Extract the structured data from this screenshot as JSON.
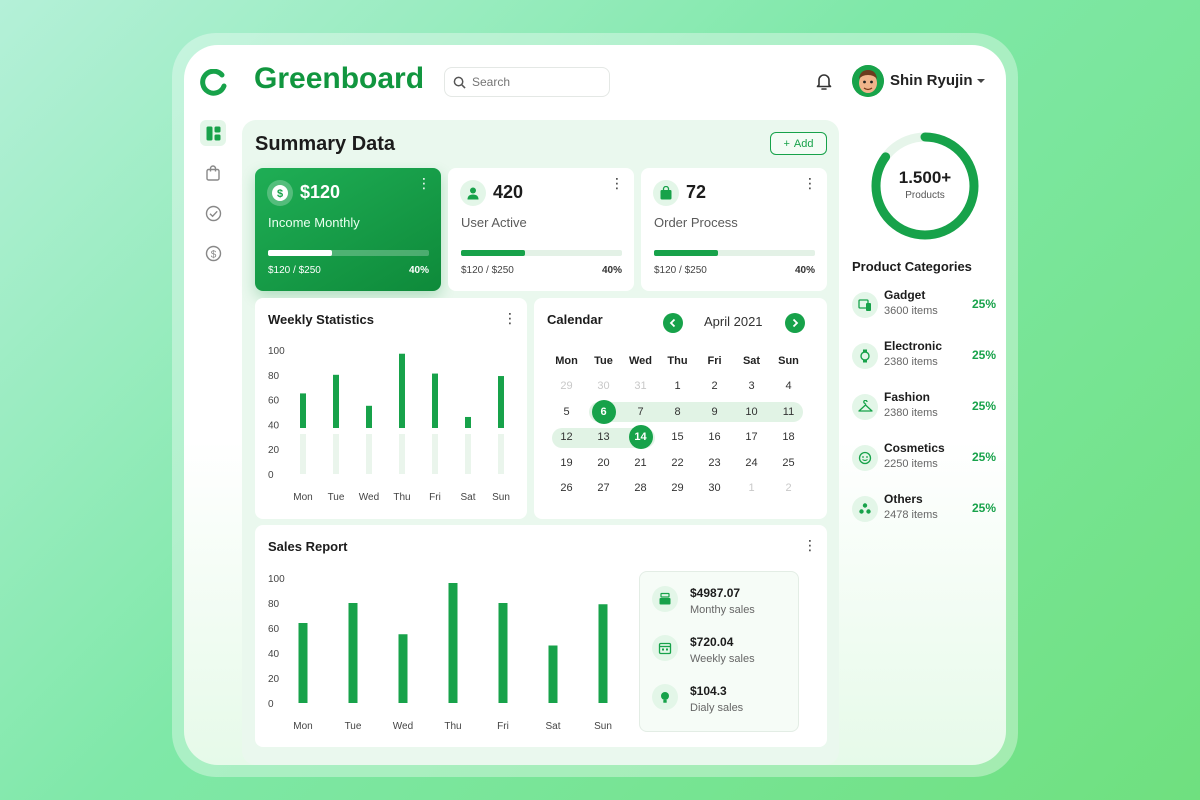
{
  "app": {
    "brand": "Greenboard"
  },
  "search": {
    "placeholder": "Search"
  },
  "user": {
    "name": "Shin Ryujin"
  },
  "sidebar": {
    "items": [
      "dashboard-icon",
      "bag-icon",
      "check-circle-icon",
      "dollar-icon"
    ]
  },
  "summary": {
    "title": "Summary Data",
    "add_label": "Add",
    "cards": [
      {
        "value": "$120",
        "label": "Income Monthly",
        "foot": "$120 / $250",
        "pct": "40%",
        "progress": 0.4,
        "icon": "dollar-icon"
      },
      {
        "value": "420",
        "label": "User Active",
        "foot": "$120 / $250",
        "pct": "40%",
        "progress": 0.4,
        "icon": "user-icon"
      },
      {
        "value": "72",
        "label": "Order Process",
        "foot": "$120 / $250",
        "pct": "40%",
        "progress": 0.4,
        "icon": "bag-icon"
      }
    ]
  },
  "weekly": {
    "title": "Weekly Statistics"
  },
  "calendar": {
    "title": "Calendar",
    "month": "April 2021",
    "weekdays": [
      "Mon",
      "Tue",
      "Wed",
      "Thu",
      "Fri",
      "Sat",
      "Sun"
    ],
    "weeks": [
      [
        "29",
        "30",
        "31",
        "1",
        "2",
        "3",
        "4"
      ],
      [
        "5",
        "6",
        "7",
        "8",
        "9",
        "10",
        "11"
      ],
      [
        "12",
        "13",
        "14",
        "15",
        "16",
        "17",
        "18"
      ],
      [
        "19",
        "20",
        "21",
        "22",
        "23",
        "24",
        "25"
      ],
      [
        "26",
        "27",
        "28",
        "29",
        "30",
        "1",
        "2"
      ]
    ],
    "selected": [
      "6",
      "14"
    ]
  },
  "sales": {
    "title": "Sales Report",
    "summary": [
      {
        "value": "$4987.07",
        "label": "Monthy sales",
        "icon": "cash-register-icon"
      },
      {
        "value": "$720.04",
        "label": "Weekly sales",
        "icon": "calendar-icon"
      },
      {
        "value": "$104.3",
        "label": "Dialy sales",
        "icon": "bulb-icon"
      }
    ]
  },
  "products": {
    "total": "1.500+",
    "label": "Products",
    "progress": 0.85
  },
  "categories": {
    "title": "Product Categories",
    "items": [
      {
        "name": "Gadget",
        "count": "3600 items",
        "pct": "25%",
        "icon": "gadget-icon"
      },
      {
        "name": "Electronic",
        "count": "2380 items",
        "pct": "25%",
        "icon": "watch-icon"
      },
      {
        "name": "Fashion",
        "count": "2380 items",
        "pct": "25%",
        "icon": "hanger-icon"
      },
      {
        "name": "Cosmetics",
        "count": "2250 items",
        "pct": "25%",
        "icon": "face-icon"
      },
      {
        "name": "Others",
        "count": "2478 items",
        "pct": "25%",
        "icon": "others-icon"
      }
    ]
  },
  "chart_data": [
    {
      "type": "bar",
      "title": "Weekly Statistics",
      "categories": [
        "Mon",
        "Tue",
        "Wed",
        "Thu",
        "Fri",
        "Sat",
        "Sun"
      ],
      "values": [
        65,
        80,
        55,
        97,
        81,
        46,
        79
      ],
      "yticks": [
        0,
        20,
        40,
        60,
        80,
        100
      ],
      "ylim": [
        0,
        100
      ],
      "color": "#17a24a"
    },
    {
      "type": "bar",
      "title": "Sales Report",
      "categories": [
        "Mon",
        "Tue",
        "Wed",
        "Thu",
        "Fri",
        "Sat",
        "Sun"
      ],
      "values": [
        64,
        80,
        55,
        96,
        80,
        46,
        79
      ],
      "yticks": [
        0,
        20,
        40,
        60,
        80,
        100
      ],
      "ylim": [
        0,
        100
      ],
      "color": "#17a24a"
    }
  ]
}
